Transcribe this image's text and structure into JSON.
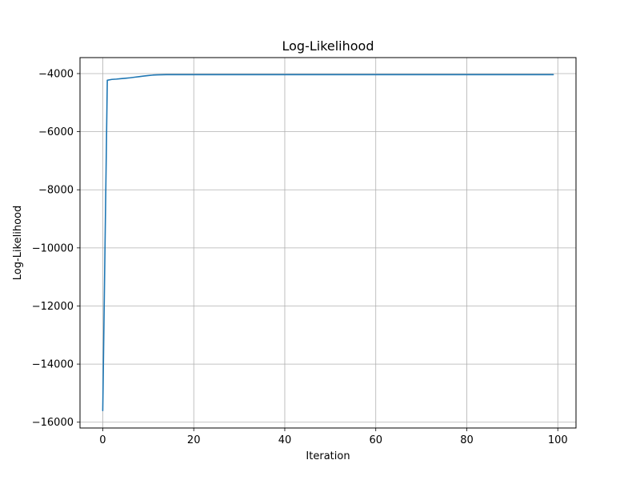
{
  "chart_data": {
    "type": "line",
    "title": "Log-Likelihood",
    "xlabel": "Iteration",
    "ylabel": "Log-Likelihood",
    "xlim": [
      -5,
      104
    ],
    "ylim": [
      -16200,
      -3450
    ],
    "x_ticks": [
      0,
      20,
      40,
      60,
      80,
      100
    ],
    "y_ticks": [
      -16000,
      -14000,
      -12000,
      -10000,
      -8000,
      -6000,
      -4000
    ],
    "x_tick_labels": [
      "0",
      "20",
      "40",
      "60",
      "80",
      "100"
    ],
    "y_tick_labels": [
      "−16000",
      "−14000",
      "−12000",
      "−10000",
      "−8000",
      "−6000",
      "−4000"
    ],
    "grid": true,
    "series": [
      {
        "color": "#1f77b4",
        "x": [
          0,
          1,
          2,
          3,
          4,
          5,
          6,
          7,
          8,
          9,
          10,
          11,
          12,
          13,
          14,
          15,
          20,
          30,
          40,
          50,
          60,
          70,
          80,
          90,
          99
        ],
        "y": [
          -15600,
          -4230,
          -4200,
          -4190,
          -4175,
          -4160,
          -4145,
          -4125,
          -4105,
          -4085,
          -4068,
          -4052,
          -4043,
          -4040,
          -4038,
          -4037,
          -4037,
          -4037,
          -4037,
          -4037,
          -4037,
          -4037,
          -4037,
          -4037,
          -4037
        ]
      }
    ]
  }
}
